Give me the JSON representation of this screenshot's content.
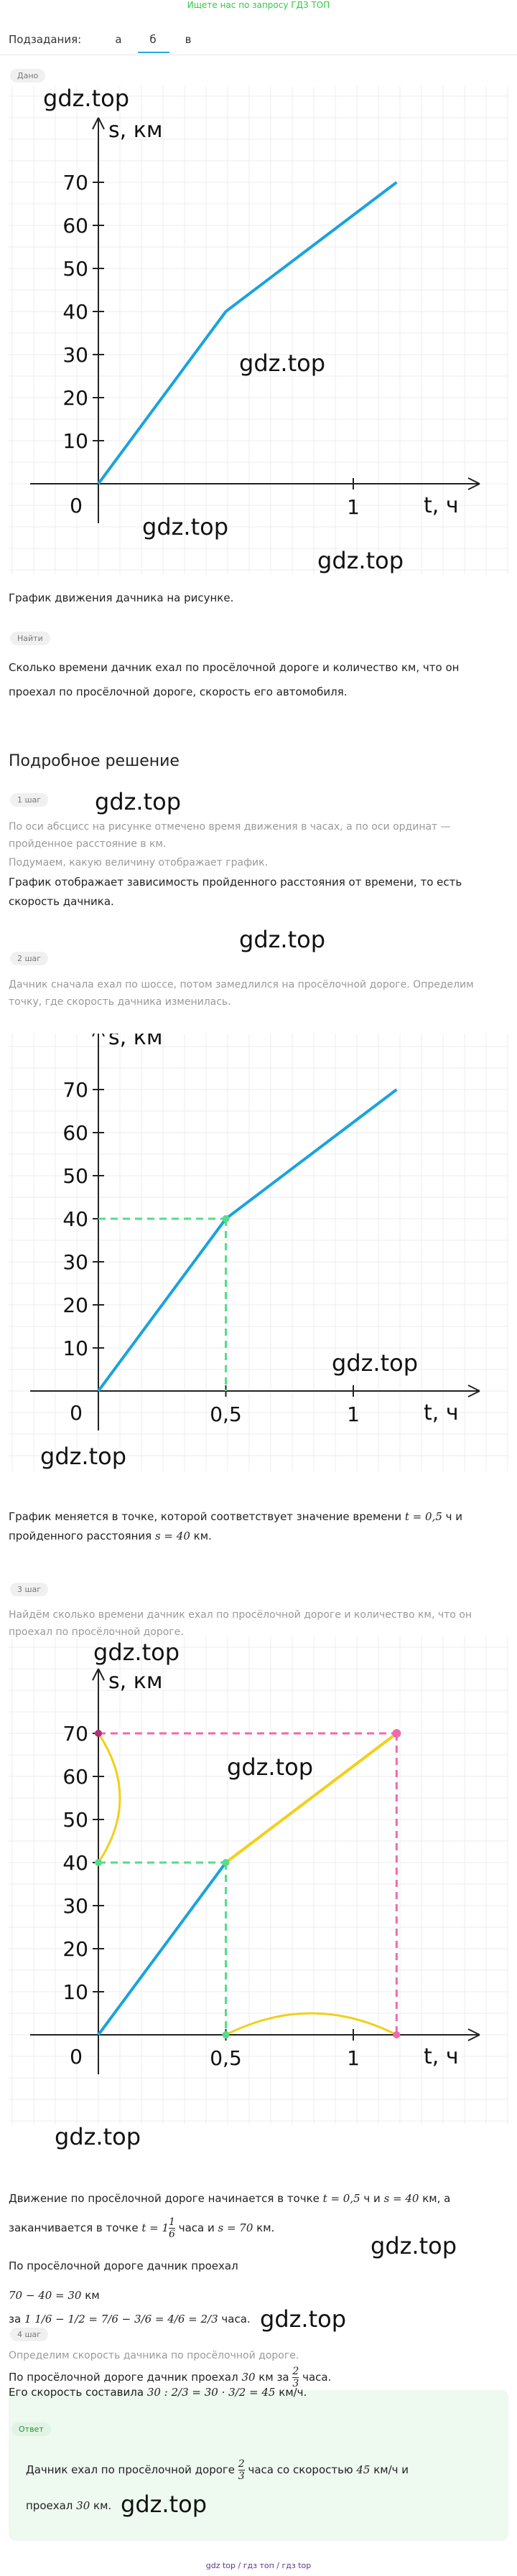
{
  "top_link": "Ищете нас по запросу ГДЗ ТОП",
  "subtasks": {
    "label": "Подзадания:",
    "tabs": [
      "а",
      "б",
      "в"
    ],
    "active_index": 1
  },
  "given": {
    "tag": "Дано",
    "caption": "График движения дачника на рисунке."
  },
  "find": {
    "tag": "Найти",
    "text": "Сколько времени дачник ехал по просёлочной дороге и количество км, что он проехал по просёлочной дороге, скорость его автомобиля."
  },
  "solution": {
    "title": "Подробное решение",
    "steps": [
      {
        "tag": "1 шаг",
        "muted": "По оси абсцисс на рисунке отмечено время движения в часах, а по оси ординат — пройденное расстояние в км.",
        "muted2": "Подумаем, какую величину отображает график.",
        "text": "График отображает зависимость пройденного расстояния от времени, то есть скорость дачника."
      },
      {
        "tag": "2 шаг",
        "muted": "Дачник сначала ехал по шоссе, потом замедлился на просёлочной дороге. Определим точку, где скорость дачника изменилась.",
        "text_a": "График меняется в точке, которой соответствует значение времени ",
        "math_a": "t = 0,5",
        "text_b": " ч и пройденного расстояния ",
        "math_b": "s = 40",
        "text_c": " км."
      },
      {
        "tag": "3 шаг",
        "muted": "Найдём сколько времени дачник ехал по просёлочной дороге и количество км, что он проехал по просёлочной дороге.",
        "line1_a": "Движение по просёлочной дороге начинается в точке ",
        "line1_m1": "t = 0,5",
        "line1_b": " ч и ",
        "line1_m2": "s = 40",
        "line1_c": " км, а",
        "line2_a": "заканчивается в точке ",
        "line2_m1": "t = 1",
        "line2_frac_n": "1",
        "line2_frac_d": "6",
        "line2_b": " часа и ",
        "line2_m2": "s = 70",
        "line2_c": " км.",
        "line3": "По просёлочной дороге дачник проехал",
        "line4_m": "70 − 40 = 30",
        "line4_t": " км",
        "line5_a": "за ",
        "line5_eq": "1 1/6 − 1/2 = 7/6 − 3/6 = 4/6 = 2/3",
        "line5_b": " часа."
      },
      {
        "tag": "4 шаг",
        "muted": "Определим скорость дачника по просёлочной дороге.",
        "line1_a": "По просёлочной дороге дачник проехал ",
        "line1_m": "30",
        "line1_b": " км за ",
        "line1_c": " часа.",
        "line2_a": "Его скорость составила ",
        "line2_m": "30 : 2/3 = 30 · 3/2 = 45",
        "line2_b": " км/ч."
      }
    ]
  },
  "answer": {
    "tag": "Ответ",
    "line1_a": "Дачник ехал по просёлочной дороге ",
    "line1_b": " часа со скоростью ",
    "line1_m": "45",
    "line1_c": " км/ч и",
    "line2_a": "проехал ",
    "line2_m": "30",
    "line2_b": " км."
  },
  "watermark": "gdz.top",
  "footer": "gdz top  /  гдз топ  /  гдз top",
  "chart_data": [
    {
      "type": "line",
      "x": [
        0,
        0.5,
        1.17
      ],
      "y": [
        0,
        40,
        70
      ],
      "xlabel": "t, ч",
      "ylabel": "s, км",
      "xticks": [
        "0",
        "1"
      ],
      "yticks": [
        "10",
        "20",
        "30",
        "40",
        "50",
        "60",
        "70"
      ],
      "xlim": [
        0,
        1.4
      ],
      "ylim": [
        0,
        80
      ],
      "color": "#1aa3dd"
    },
    {
      "type": "line",
      "x": [
        0,
        0.5,
        1.17
      ],
      "y": [
        0,
        40,
        70
      ],
      "xlabel": "t, ч",
      "ylabel": "s, км",
      "xticks": [
        "0",
        "0,5",
        "1"
      ],
      "yticks": [
        "10",
        "20",
        "30",
        "40",
        "50",
        "60",
        "70"
      ],
      "highlight_point": [
        0.5,
        40
      ],
      "guide_color": "#55dd88",
      "color": "#1aa3dd"
    },
    {
      "type": "line",
      "x": [
        0,
        0.5,
        1.17
      ],
      "y": [
        0,
        40,
        70
      ],
      "xlabel": "t, ч",
      "ylabel": "s, км",
      "xticks": [
        "0",
        "0,5",
        "1"
      ],
      "yticks": [
        "10",
        "20",
        "30",
        "40",
        "50",
        "60",
        "70"
      ],
      "highlight_segment": [
        [
          0.5,
          40
        ],
        [
          1.17,
          70
        ]
      ],
      "colors": {
        "line": "#1aa3dd",
        "segment": "#f2cf1a",
        "guide_green": "#55dd88",
        "guide_pink": "#ee6ab0"
      }
    }
  ]
}
